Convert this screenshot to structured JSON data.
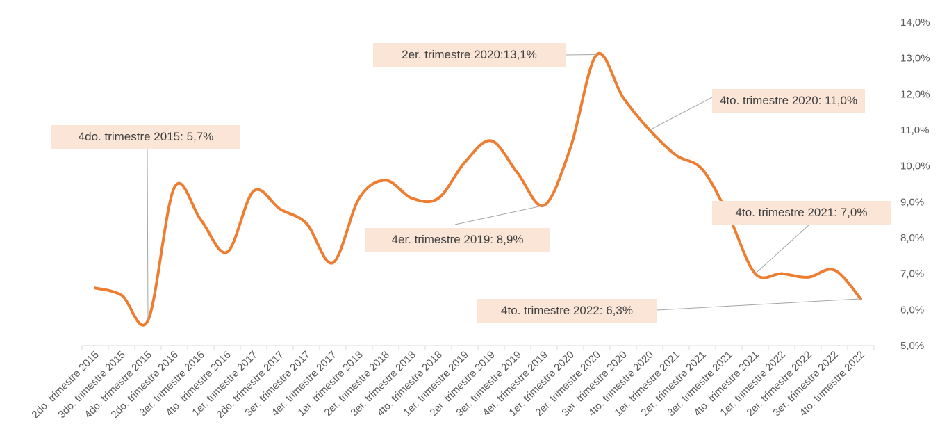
{
  "chart_data": {
    "type": "line",
    "categories": [
      "2do. trimestre 2015",
      "3do. trimestre 2015",
      "4do. trimestre 2015",
      "2do. trimestre 2016",
      "3er. trimestre 2016",
      "4to. trimestre 2016",
      "1er. trimestre 2017",
      "2do. trimestre 2017",
      "3er. trimestre 2017",
      "4er. trimestre 2017",
      "1er. trimestre 2018",
      "2er. trimestre 2018",
      "3er. trimestre 2018",
      "4to. trimestre 2018",
      "1er. trimestre 2019",
      "2er. trimestre 2019",
      "3er. trimestre 2019",
      "4er. trimestre 2019",
      "1er. trimestre 2020",
      "2er. trimestre 2020",
      "3er. trimestre 2020",
      "4to. trimestre 2020",
      "1er. trimestre 2021",
      "2er. trimestre 2021",
      "3er. trimestre 2021",
      "4to. trimestre 2021",
      "1er. trimestre 2022",
      "2er. trimestre 2022",
      "3er. trimestre 2022",
      "4to. trimestre 2022"
    ],
    "series": [
      {
        "color": "#ed7d31",
        "values": [
          6.6,
          6.4,
          5.7,
          9.4,
          8.5,
          7.6,
          9.3,
          8.8,
          8.4,
          7.3,
          9.1,
          9.6,
          9.1,
          9.1,
          10.1,
          10.7,
          9.8,
          8.9,
          10.5,
          13.1,
          11.9,
          11.0,
          10.3,
          9.9,
          8.6,
          7.0,
          7.0,
          6.9,
          7.1,
          6.3
        ]
      }
    ],
    "ylim": [
      5,
      14
    ],
    "yticks": [
      {
        "value": 5,
        "label": "5,0%"
      },
      {
        "value": 6,
        "label": "6,0%"
      },
      {
        "value": 7,
        "label": "7,0%"
      },
      {
        "value": 8,
        "label": "8,0%"
      },
      {
        "value": 9,
        "label": "9,0%"
      },
      {
        "value": 10,
        "label": "10,0%"
      },
      {
        "value": 11,
        "label": "11,0%"
      },
      {
        "value": 12,
        "label": "12,0%"
      },
      {
        "value": 13,
        "label": "13,0%"
      },
      {
        "value": 14,
        "label": "14,0%"
      }
    ],
    "annotations": [
      "4do. trimestre 2015: 5,7%",
      "4er. trimestre 2019: 8,9%",
      "2er. trimestre 2020:13,1%",
      "4to. trimestre 2020: 11,0%",
      "4to. trimestre 2021: 7,0%",
      "4to. trimestre 2022: 6,3%"
    ]
  }
}
